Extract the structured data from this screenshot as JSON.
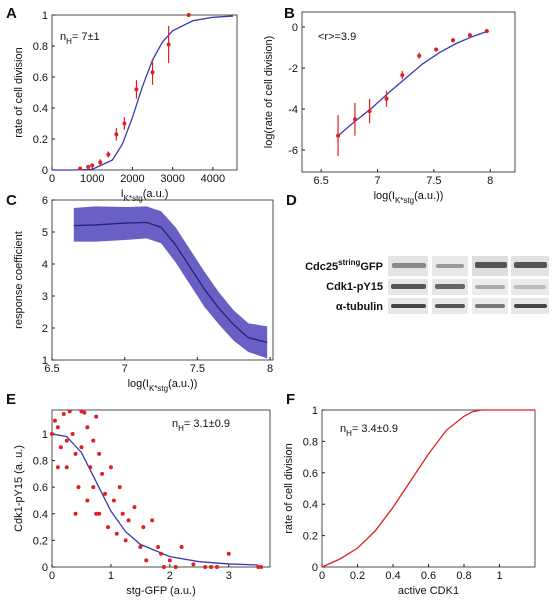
{
  "chart_data": [
    {
      "panel": "A",
      "type": "line",
      "xlim": [
        0,
        4600
      ],
      "ylim": [
        0,
        1
      ],
      "xticks": [
        0,
        1000,
        2000,
        3000,
        4000
      ],
      "yticks": [
        0,
        0.2,
        0.4,
        0.6,
        0.8,
        1
      ],
      "xlabel": [
        "I",
        "K*stg",
        "(a.u.)"
      ],
      "ylabel": "rate of cell division",
      "annotation": [
        "n",
        "H",
        "= 7±1"
      ],
      "series": [
        {
          "style": "line",
          "color": "#3a3ab0",
          "x": [
            0,
            500,
            1000,
            1500,
            1750,
            2000,
            2250,
            2500,
            2750,
            3000,
            3500,
            4000,
            4500
          ],
          "values": [
            0,
            0,
            0.004,
            0.064,
            0.167,
            0.339,
            0.539,
            0.71,
            0.827,
            0.898,
            0.963,
            0.985,
            0.993
          ]
        },
        {
          "style": "markers",
          "color": "#e02020",
          "x": [
            700,
            900,
            1000,
            1200,
            1400,
            1600,
            1800,
            2100,
            2500,
            2900,
            3400
          ],
          "values": [
            0.01,
            0.02,
            0.03,
            0.05,
            0.1,
            0.23,
            0.3,
            0.52,
            0.63,
            0.81,
            1.0
          ],
          "error": [
            0.01,
            0.01,
            0.01,
            0.02,
            0.02,
            0.04,
            0.04,
            0.06,
            0.08,
            0.12,
            0.01
          ]
        }
      ]
    },
    {
      "panel": "B",
      "type": "line",
      "xlim": [
        6.33,
        8.22
      ],
      "ylim": [
        -7.07,
        0.73
      ],
      "xticks": [
        6.5,
        7,
        7.5,
        8
      ],
      "yticks": [
        -6,
        -4,
        -2,
        0
      ],
      "xlabel": [
        "log(I",
        "K*stg",
        "(a.u.))"
      ],
      "ylabel": "log(rate of cell division)",
      "annotation": [
        "<r>=3.9"
      ],
      "series": [
        {
          "style": "line",
          "color": "#3a3ab0",
          "x": [
            6.65,
            6.8,
            6.95,
            7.1,
            7.25,
            7.4,
            7.55,
            7.7,
            7.85,
            7.98
          ],
          "values": [
            -5.3,
            -4.6,
            -3.95,
            -3.2,
            -2.5,
            -1.8,
            -1.25,
            -0.8,
            -0.45,
            -0.2
          ]
        },
        {
          "style": "markers",
          "color": "#e02020",
          "x": [
            6.65,
            6.8,
            6.93,
            7.08,
            7.22,
            7.37,
            7.52,
            7.67,
            7.82,
            7.97
          ],
          "values": [
            -5.3,
            -4.5,
            -4.1,
            -3.5,
            -2.35,
            -1.4,
            -1.1,
            -0.65,
            -0.4,
            -0.2
          ],
          "error": [
            1.0,
            0.8,
            0.6,
            0.4,
            0.2,
            0.15,
            0.1,
            0.1,
            0.1,
            0.1
          ]
        }
      ]
    },
    {
      "panel": "C",
      "type": "band",
      "xlim": [
        6.5,
        8.02
      ],
      "ylim": [
        1,
        6
      ],
      "xticks": [
        6.5,
        7,
        7.5,
        8
      ],
      "yticks": [
        1,
        2,
        3,
        4,
        5,
        6
      ],
      "xlabel": [
        "log(I",
        "K*stg",
        "(a.u.))"
      ],
      "ylabel": "response coefficient",
      "series": [
        {
          "color": "#23237a",
          "fill": "#6a5fc4",
          "x": [
            6.65,
            6.8,
            7.0,
            7.15,
            7.25,
            7.35,
            7.45,
            7.55,
            7.65,
            7.75,
            7.85,
            7.98
          ],
          "values": [
            5.2,
            5.22,
            5.28,
            5.3,
            5.15,
            4.6,
            3.9,
            3.2,
            2.6,
            2.1,
            1.7,
            1.55
          ],
          "upper": [
            5.75,
            5.8,
            5.78,
            5.8,
            5.65,
            5.15,
            4.45,
            3.75,
            3.1,
            2.55,
            2.15,
            2.05
          ],
          "lower": [
            4.7,
            4.7,
            4.75,
            4.8,
            4.65,
            4.05,
            3.35,
            2.65,
            2.1,
            1.6,
            1.25,
            1.05
          ]
        }
      ]
    },
    {
      "panel": "D",
      "type": "blot",
      "rows": [
        [
          "Cdc25",
          "string",
          "GFP"
        ],
        [
          "Cdk1-pY15"
        ],
        [
          "α-tubulin"
        ]
      ]
    },
    {
      "panel": "E",
      "type": "scatter",
      "xlim": [
        0,
        3.7
      ],
      "ylim": [
        0,
        1.18
      ],
      "xticks": [
        0,
        1,
        2,
        3
      ],
      "yticks": [
        0,
        0.2,
        0.4,
        0.6,
        0.8,
        1
      ],
      "xlabel": "stg-GFP (a.u.)",
      "ylabel": "Cdk1-pY15 (a. u.)",
      "annotation": [
        "n",
        "H",
        "= 3.1±0.9"
      ],
      "series": [
        {
          "style": "line",
          "color": "#3a3ab0",
          "x": [
            0,
            0.25,
            0.5,
            0.75,
            1,
            1.25,
            1.5,
            2,
            2.5,
            3,
            3.5
          ],
          "values": [
            1,
            0.98,
            0.86,
            0.64,
            0.42,
            0.265,
            0.17,
            0.078,
            0.04,
            0.023,
            0.015
          ]
        },
        {
          "style": "markers",
          "color": "#e02020",
          "x": [
            0,
            0.05,
            0.1,
            0.1,
            0.15,
            0.2,
            0.25,
            0.25,
            0.3,
            0.35,
            0.4,
            0.4,
            0.45,
            0.5,
            0.5,
            0.55,
            0.6,
            0.6,
            0.65,
            0.7,
            0.7,
            0.75,
            0.75,
            0.8,
            0.8,
            0.85,
            0.9,
            0.95,
            1.0,
            1.05,
            1.1,
            1.15,
            1.2,
            1.25,
            1.3,
            1.4,
            1.5,
            1.55,
            1.6,
            1.7,
            1.8,
            1.85,
            1.9,
            2.0,
            2.1,
            2.2,
            2.4,
            2.6,
            2.7,
            2.8,
            3.0,
            3.5,
            3.55
          ],
          "values": [
            1.0,
            1.1,
            1.05,
            0.75,
            0.9,
            1.15,
            0.95,
            0.75,
            1.17,
            1.0,
            0.85,
            0.4,
            0.6,
            1.17,
            0.9,
            1.16,
            1.05,
            0.5,
            0.75,
            0.95,
            0.6,
            1.13,
            0.4,
            0.85,
            0.4,
            0.7,
            0.55,
            0.3,
            0.75,
            0.5,
            0.25,
            0.6,
            0.4,
            0.2,
            0.35,
            0.45,
            0.15,
            0.3,
            0.05,
            0.35,
            0.15,
            0.1,
            0,
            0.05,
            0,
            0.15,
            0.02,
            0,
            0,
            0,
            0.1,
            0,
            0
          ]
        }
      ]
    },
    {
      "panel": "F",
      "type": "line",
      "xlim": [
        0,
        1.2
      ],
      "ylim": [
        0,
        1
      ],
      "xticks": [
        0,
        0.2,
        0.4,
        0.6,
        0.8,
        1
      ],
      "yticks": [
        0,
        0.2,
        0.4,
        0.6,
        0.8,
        1
      ],
      "xlabel": "active CDK1",
      "ylabel": "rate of cell division",
      "annotation": [
        "n",
        "H",
        "= 3.4±0.9"
      ],
      "series": [
        {
          "style": "line",
          "color": "#e02020",
          "x": [
            0,
            0.1,
            0.2,
            0.3,
            0.4,
            0.5,
            0.6,
            0.7,
            0.8,
            0.85,
            0.9,
            1.0,
            1.2
          ],
          "values": [
            0,
            0.05,
            0.12,
            0.23,
            0.38,
            0.55,
            0.72,
            0.87,
            0.96,
            0.99,
            1.0,
            1.0,
            1.0
          ]
        }
      ]
    }
  ]
}
